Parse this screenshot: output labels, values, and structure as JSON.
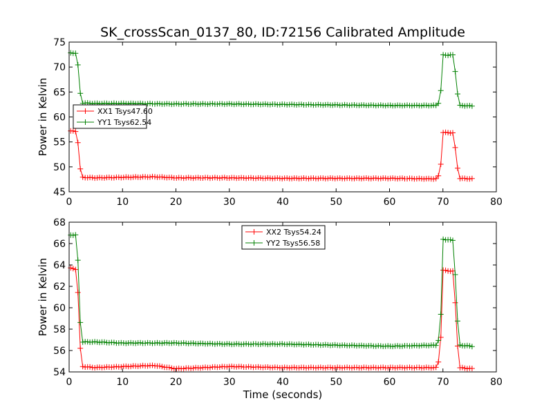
{
  "chart_data": {
    "type": "line",
    "title": "SK_crossScan_0137_80, ID:72156 Calibrated Amplitude",
    "xlabel": "Time (seconds)",
    "panels": [
      {
        "id": "top",
        "ylabel": "Power in Kelvin",
        "xlim": [
          0,
          80
        ],
        "ylim": [
          45,
          75
        ],
        "xticks": [
          "0",
          "10",
          "20",
          "30",
          "40",
          "50",
          "60",
          "70",
          "80"
        ],
        "yticks": [
          "45",
          "50",
          "55",
          "60",
          "65",
          "70",
          "75"
        ],
        "legend_position": "center-left",
        "series": [
          {
            "name": "XX1 Tsys47.60",
            "color": "#ff0000",
            "keypoints": [
              [
                0.3,
                57.2
              ],
              [
                1.2,
                57.1
              ],
              [
                1.5,
                57.0
              ],
              [
                2.0,
                50.0
              ],
              [
                2.5,
                47.9
              ],
              [
                5,
                47.8
              ],
              [
                10,
                47.9
              ],
              [
                16,
                48.0
              ],
              [
                20,
                47.8
              ],
              [
                30,
                47.8
              ],
              [
                40,
                47.7
              ],
              [
                50,
                47.7
              ],
              [
                60,
                47.7
              ],
              [
                68.9,
                47.6
              ],
              [
                69.5,
                49.0
              ],
              [
                70.0,
                56.9
              ],
              [
                72.0,
                56.8
              ],
              [
                72.5,
                51.8
              ],
              [
                73.0,
                47.7
              ],
              [
                75.5,
                47.6
              ]
            ]
          },
          {
            "name": "YY1 Tsys62.54",
            "color": "#008000",
            "keypoints": [
              [
                0.3,
                72.8
              ],
              [
                1.2,
                72.8
              ],
              [
                1.5,
                72.6
              ],
              [
                2.0,
                65.2
              ],
              [
                2.5,
                62.8
              ],
              [
                5,
                62.7
              ],
              [
                10,
                62.7
              ],
              [
                20,
                62.6
              ],
              [
                30,
                62.6
              ],
              [
                40,
                62.5
              ],
              [
                50,
                62.4
              ],
              [
                60,
                62.3
              ],
              [
                68.9,
                62.3
              ],
              [
                69.5,
                63.5
              ],
              [
                70.0,
                72.4
              ],
              [
                72.0,
                72.4
              ],
              [
                72.5,
                67.0
              ],
              [
                73.0,
                62.3
              ],
              [
                75.5,
                62.2
              ]
            ]
          }
        ]
      },
      {
        "id": "bottom",
        "ylabel": "Power in Kelvin",
        "xlabel": "Time (seconds)",
        "xlim": [
          0,
          80
        ],
        "ylim": [
          54,
          68
        ],
        "xticks": [
          "0",
          "10",
          "20",
          "30",
          "40",
          "50",
          "60",
          "70",
          "80"
        ],
        "yticks": [
          "54",
          "56",
          "58",
          "60",
          "62",
          "64",
          "66",
          "68"
        ],
        "legend_position": "top-center",
        "series": [
          {
            "name": "XX2 Tsys54.24",
            "color": "#ff0000",
            "keypoints": [
              [
                0.3,
                63.7
              ],
              [
                1.2,
                63.6
              ],
              [
                1.5,
                63.5
              ],
              [
                2.0,
                56.6
              ],
              [
                2.5,
                54.5
              ],
              [
                5,
                54.4
              ],
              [
                10,
                54.5
              ],
              [
                16,
                54.6
              ],
              [
                20,
                54.3
              ],
              [
                30,
                54.5
              ],
              [
                40,
                54.4
              ],
              [
                50,
                54.4
              ],
              [
                60,
                54.4
              ],
              [
                68.9,
                54.4
              ],
              [
                69.5,
                55.7
              ],
              [
                70.0,
                63.5
              ],
              [
                72.0,
                63.4
              ],
              [
                72.5,
                58.5
              ],
              [
                73.0,
                54.4
              ],
              [
                75.5,
                54.3
              ]
            ]
          },
          {
            "name": "YY2 Tsys56.58",
            "color": "#008000",
            "keypoints": [
              [
                0.3,
                66.8
              ],
              [
                1.2,
                66.8
              ],
              [
                1.5,
                66.7
              ],
              [
                2.0,
                59.1
              ],
              [
                2.5,
                56.8
              ],
              [
                5,
                56.8
              ],
              [
                10,
                56.7
              ],
              [
                20,
                56.7
              ],
              [
                30,
                56.6
              ],
              [
                40,
                56.6
              ],
              [
                50,
                56.5
              ],
              [
                60,
                56.4
              ],
              [
                68.9,
                56.5
              ],
              [
                69.5,
                57.6
              ],
              [
                70.0,
                66.4
              ],
              [
                72.0,
                66.3
              ],
              [
                72.5,
                61.0
              ],
              [
                73.0,
                56.5
              ],
              [
                75.5,
                56.4
              ]
            ]
          }
        ]
      }
    ]
  }
}
